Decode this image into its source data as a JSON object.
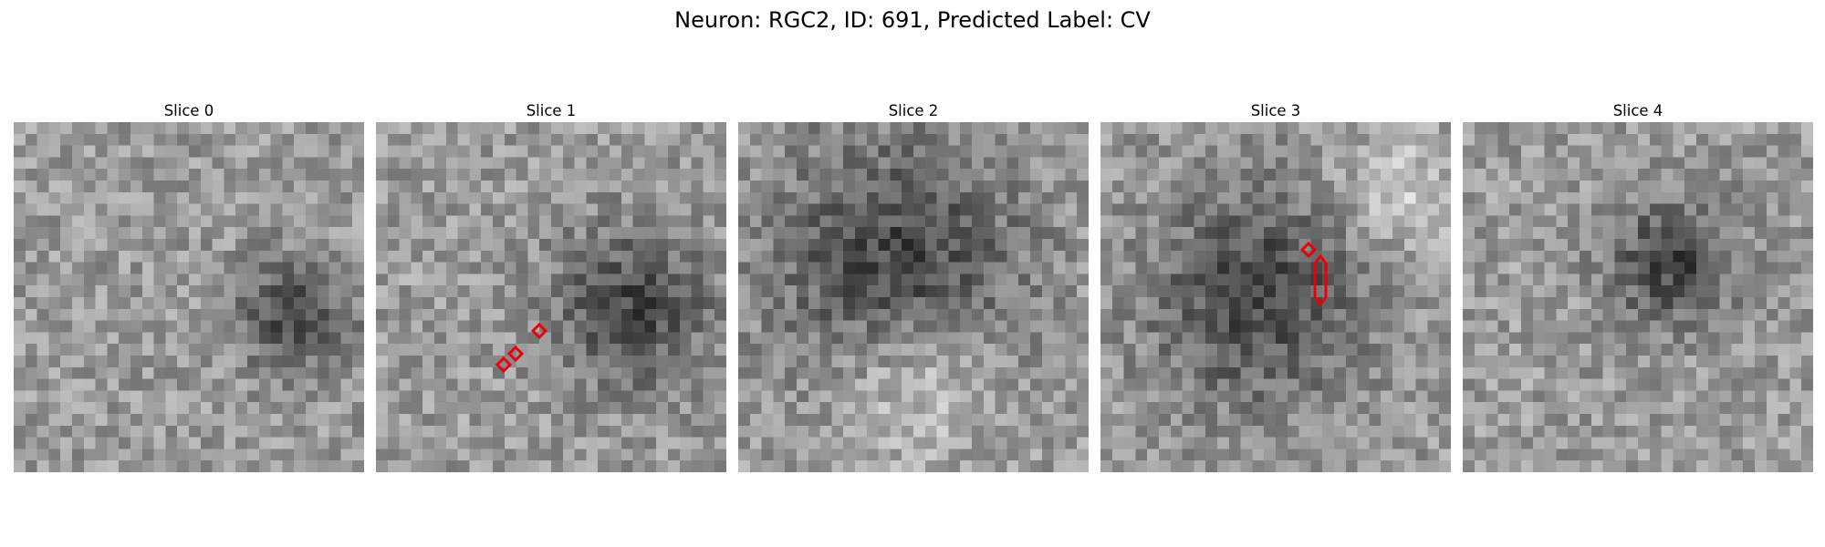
{
  "figure": {
    "title": "Neuron: RGC2, ID: 691, Predicted Label: CV"
  },
  "panels": [
    {
      "title": "Slice 0",
      "dark_blob": [
        0.8,
        0.55,
        0.16
      ],
      "light_blob": null,
      "markers": []
    },
    {
      "title": "Slice 1",
      "dark_blob": [
        0.73,
        0.53,
        0.22
      ],
      "light_blob": null,
      "markers": [
        "diamond",
        "diamond",
        "diamond"
      ]
    },
    {
      "title": "Slice 2",
      "dark_blob": [
        0.45,
        0.4,
        0.35
      ],
      "light_blob": [
        0.5,
        0.75,
        0.22
      ],
      "markers": []
    },
    {
      "title": "Slice 3",
      "dark_blob": [
        0.45,
        0.5,
        0.3
      ],
      "light_blob": [
        0.85,
        0.2,
        0.15
      ],
      "markers": [
        "diamond",
        "elongated-hexagon"
      ]
    },
    {
      "title": "Slice 4",
      "dark_blob": [
        0.6,
        0.4,
        0.18
      ],
      "light_blob": null,
      "markers": []
    }
  ],
  "colors": {
    "marker": "#e8000b",
    "colormap": "gray"
  }
}
